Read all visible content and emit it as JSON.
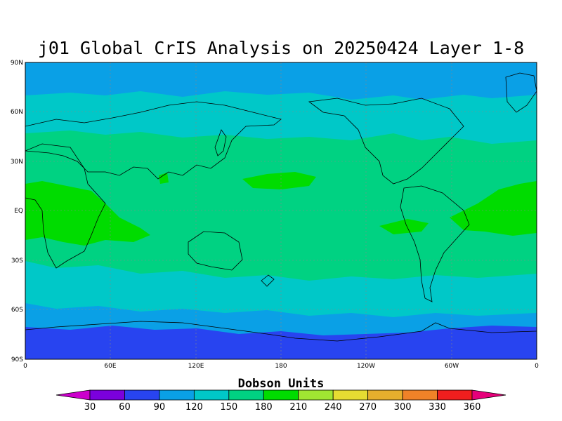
{
  "title": "j01 Global CrIS Analysis on 20250424 Layer 1-8",
  "colorbar": {
    "units_label": "Dobson Units",
    "ticks": [
      "30",
      "60",
      "90",
      "120",
      "150",
      "180",
      "210",
      "240",
      "270",
      "300",
      "330",
      "360"
    ],
    "colors": [
      "#cc00cc",
      "#7b00dd",
      "#2844f0",
      "#0aa0e6",
      "#00c8c8",
      "#00d282",
      "#00dc00",
      "#a0e632",
      "#e6dc32",
      "#e6af2d",
      "#f08228",
      "#f01e1e",
      "#e6007a"
    ]
  },
  "chart_data": {
    "type": "heatmap",
    "title": "j01 Global CrIS Analysis on 20250424 Layer 1-8",
    "x_ticks": [
      "0",
      "60E",
      "120E",
      "180",
      "120W",
      "60W",
      "0"
    ],
    "y_ticks": [
      "90N",
      "60N",
      "30N",
      "EQ",
      "30S",
      "60S",
      "90S"
    ],
    "xlim": [
      0,
      360
    ],
    "ylim": [
      -90,
      90
    ],
    "grid": true,
    "value_bands": [
      {
        "lat_range": [
          62,
          90
        ],
        "value_range": [
          90,
          120
        ]
      },
      {
        "lat_range": [
          45,
          62
        ],
        "value_range": [
          120,
          150
        ]
      },
      {
        "lat_range": [
          -30,
          45
        ],
        "value_range": [
          150,
          180
        ]
      },
      {
        "lat_range": [
          -30,
          10
        ],
        "value_range": [
          180,
          210
        ],
        "note": "tropical Africa, Atlantic, central Pacific patches"
      },
      {
        "lat_range": [
          -55,
          -30
        ],
        "value_range": [
          120,
          150
        ]
      },
      {
        "lat_range": [
          -68,
          -55
        ],
        "value_range": [
          90,
          120
        ]
      },
      {
        "lat_range": [
          -90,
          -68
        ],
        "value_range": [
          60,
          90
        ]
      }
    ]
  }
}
